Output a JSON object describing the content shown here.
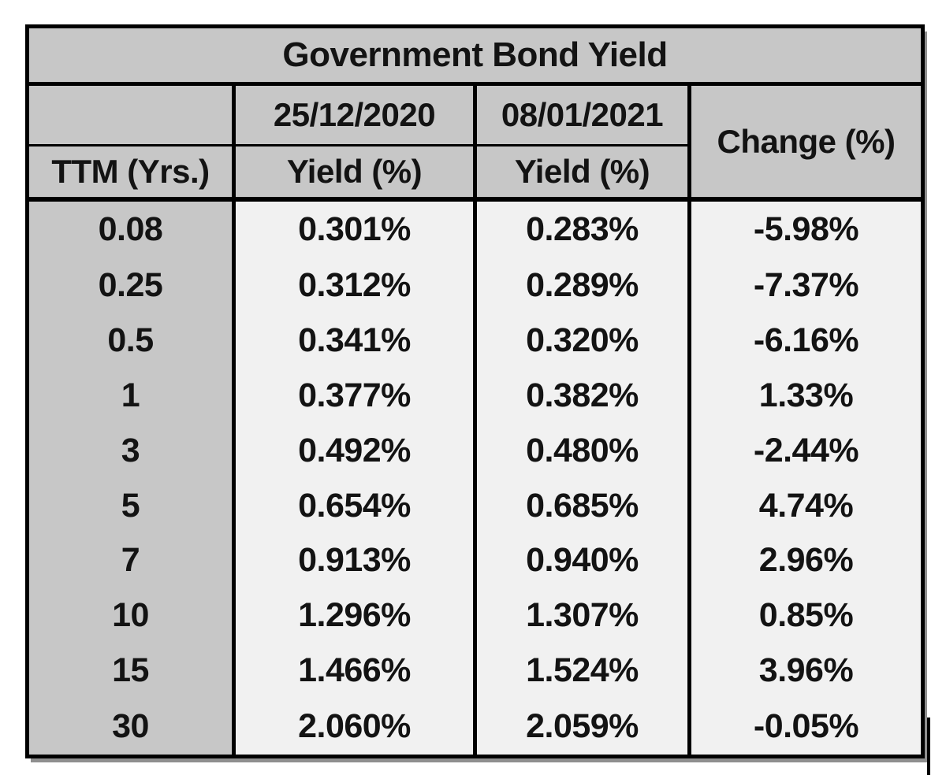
{
  "table": {
    "title": "Government Bond Yield",
    "header": {
      "corner": "",
      "date_prev": "25/12/2020",
      "date_curr": "08/01/2021",
      "change": "Change (%)",
      "ttm": "TTM (Yrs.)",
      "yield_prev": "Yield (%)",
      "yield_curr": "Yield (%)"
    }
  },
  "chart_data": {
    "type": "table",
    "title": "Government Bond Yield",
    "columns": [
      "TTM (Yrs.)",
      "25/12/2020 Yield (%)",
      "08/01/2021 Yield (%)",
      "Change (%)"
    ],
    "rows": [
      [
        "0.08",
        "0.301%",
        "0.283%",
        "-5.98%"
      ],
      [
        "0.25",
        "0.312%",
        "0.289%",
        "-7.37%"
      ],
      [
        "0.5",
        "0.341%",
        "0.320%",
        "-6.16%"
      ],
      [
        "1",
        "0.377%",
        "0.382%",
        "1.33%"
      ],
      [
        "3",
        "0.492%",
        "0.480%",
        "-2.44%"
      ],
      [
        "5",
        "0.654%",
        "0.685%",
        "4.74%"
      ],
      [
        "7",
        "0.913%",
        "0.940%",
        "2.96%"
      ],
      [
        "10",
        "1.296%",
        "1.307%",
        "0.85%"
      ],
      [
        "15",
        "1.466%",
        "1.524%",
        "3.96%"
      ],
      [
        "30",
        "2.060%",
        "2.059%",
        "-0.05%"
      ]
    ]
  },
  "colors": {
    "header_bg": "#c7c7c7",
    "body_bg": "#f1f1f1",
    "border": "#000000",
    "text": "#131313",
    "shadow": "#8f8f8f"
  }
}
